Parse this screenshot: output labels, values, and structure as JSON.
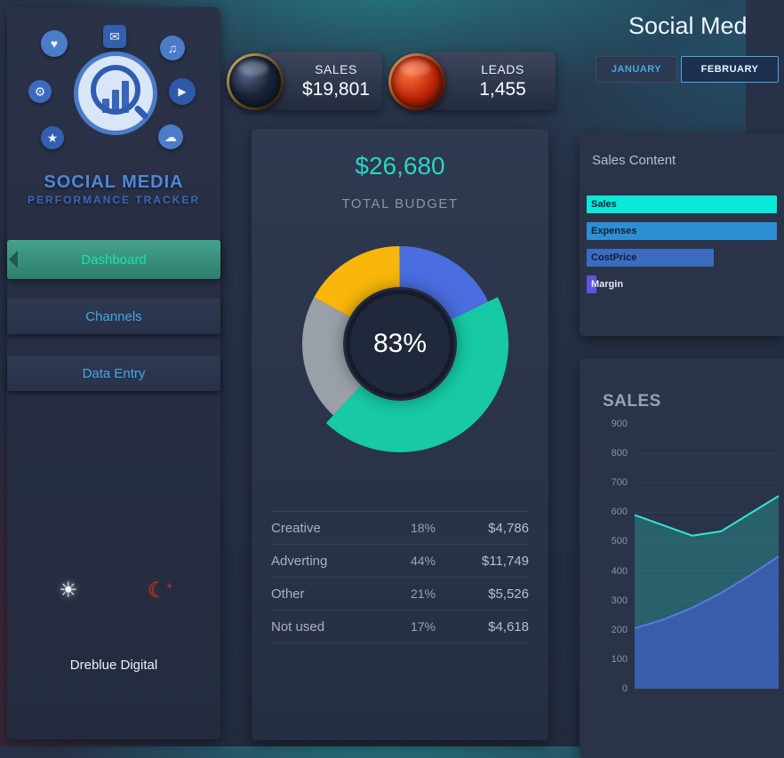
{
  "app": {
    "title": "Social Med",
    "brand_line1": "SOCIAL MEDIA",
    "brand_line2": "PERFORMANCE TRACKER",
    "footer": "Dreblue Digital"
  },
  "sidebar": {
    "items": [
      {
        "label": "Dashboard",
        "active": true
      },
      {
        "label": "Channels",
        "active": false
      },
      {
        "label": "Data Entry",
        "active": false
      }
    ]
  },
  "theme": {
    "light_icon": "sun",
    "dark_icon": "moon-crescent"
  },
  "tabs": [
    {
      "label": "JANUARY",
      "active": false
    },
    {
      "label": "FEBRUARY",
      "active": true
    }
  ],
  "kpis": [
    {
      "label": "SALES",
      "value": "$19,801"
    },
    {
      "label": "LEADS",
      "value": "1,455"
    }
  ],
  "budget": {
    "total": "$26,680",
    "subtitle": "TOTAL BUDGET",
    "center_pct": "83%",
    "rows": [
      {
        "name": "Creative",
        "pct": "18%",
        "amount": "$4,786"
      },
      {
        "name": "Adverting",
        "pct": "44%",
        "amount": "$11,749"
      },
      {
        "name": "Other",
        "pct": "21%",
        "amount": "$5,526"
      },
      {
        "name": "Not used",
        "pct": "17%",
        "amount": "$4,618"
      }
    ]
  },
  "sales_content": {
    "title": "Sales Content",
    "bars": [
      {
        "label": "Sales",
        "pct": 100,
        "color": "#0ce8d8",
        "label_color": "#11203a"
      },
      {
        "label": "Expenses",
        "pct": 100,
        "color": "#2f8fd4",
        "label_color": "#11203a"
      },
      {
        "label": "CostPrice",
        "pct": 67,
        "color": "#3b6cc0",
        "label_color": "#11203a"
      },
      {
        "label": "Margin",
        "pct": 5,
        "color": "#6052e0",
        "label_color": "#e6ebf4"
      }
    ]
  },
  "chart_data": [
    {
      "type": "pie",
      "title": "TOTAL BUDGET",
      "labels": [
        "Creative",
        "Adverting",
        "Other",
        "Not used"
      ],
      "values": [
        18,
        44,
        21,
        17
      ],
      "colors": [
        "#4a6de0",
        "#17c9a4",
        "#9aa0a8",
        "#f8b70a"
      ],
      "emphasis": 1,
      "center_label": "83%"
    },
    {
      "type": "area",
      "title": "SALES",
      "ylim": [
        0,
        900
      ],
      "yticks": [
        0,
        100,
        200,
        300,
        400,
        500,
        600,
        700,
        800,
        900
      ],
      "series": [
        {
          "name": "budget-line",
          "color": "#2ee8d4",
          "fill": "rgba(32,216,196,0.28)",
          "values": [
            590,
            555,
            520,
            535,
            595,
            655
          ]
        },
        {
          "name": "sales-area",
          "color": "#5a7ae0",
          "fill": "rgba(70,92,210,0.62)",
          "values": [
            205,
            235,
            275,
            325,
            385,
            450
          ]
        }
      ]
    }
  ]
}
